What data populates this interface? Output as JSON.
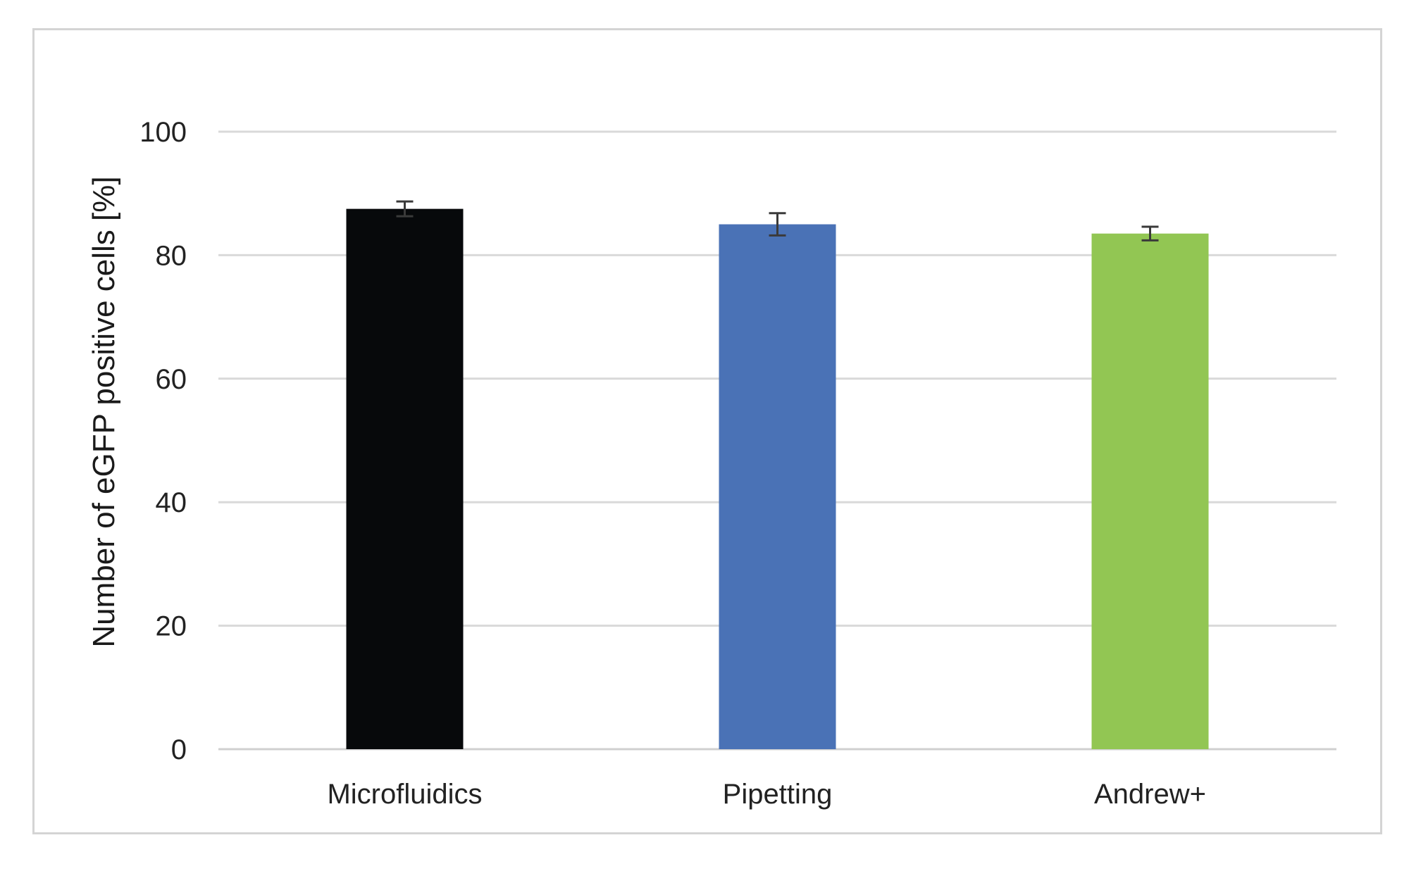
{
  "chart_data": {
    "type": "bar",
    "categories": [
      "Microfluidics",
      "Pipetting",
      "Andrew+"
    ],
    "values": [
      87.5,
      85.0,
      83.5
    ],
    "errors": [
      1.2,
      1.8,
      1.1
    ],
    "colors": [
      "#07090b",
      "#4a72b6",
      "#92c653"
    ],
    "title": "",
    "xlabel": "",
    "ylabel": "Number of eGFP positive cells [%]",
    "ylim": [
      0,
      100
    ],
    "yticks": [
      0,
      20,
      40,
      60,
      80,
      100
    ],
    "grid": true,
    "legend": "none"
  }
}
